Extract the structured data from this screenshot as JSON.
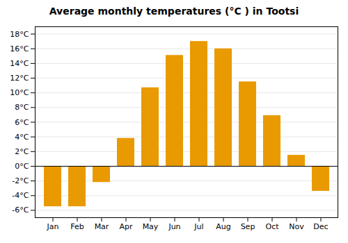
{
  "chart_data": {
    "type": "bar",
    "title": "Average monthly temperatures (°C ) in Tootsi",
    "categories": [
      "Jan",
      "Feb",
      "Mar",
      "Apr",
      "May",
      "Jun",
      "Jul",
      "Aug",
      "Sep",
      "Oct",
      "Nov",
      "Dec"
    ],
    "values": [
      -5.5,
      -5.5,
      -2.2,
      3.8,
      10.7,
      15.1,
      17.0,
      16.0,
      11.5,
      6.9,
      1.5,
      -3.4
    ],
    "color": "#E89A00",
    "ylim": [
      -7,
      19
    ],
    "yticks": [
      {
        "value": -6,
        "label": "-6°C"
      },
      {
        "value": -4,
        "label": "-4°C"
      },
      {
        "value": -2,
        "label": "-2°C"
      },
      {
        "value": 0,
        "label": "0°C"
      },
      {
        "value": 2,
        "label": "2°C"
      },
      {
        "value": 4,
        "label": "4°C"
      },
      {
        "value": 6,
        "label": "6°C"
      },
      {
        "value": 8,
        "label": "8°C"
      },
      {
        "value": 10,
        "label": "10°C"
      },
      {
        "value": 12,
        "label": "12°C"
      },
      {
        "value": 14,
        "label": "14°C"
      },
      {
        "value": 16,
        "label": "16°C"
      },
      {
        "value": 18,
        "label": "18°C"
      }
    ],
    "grid": true
  }
}
